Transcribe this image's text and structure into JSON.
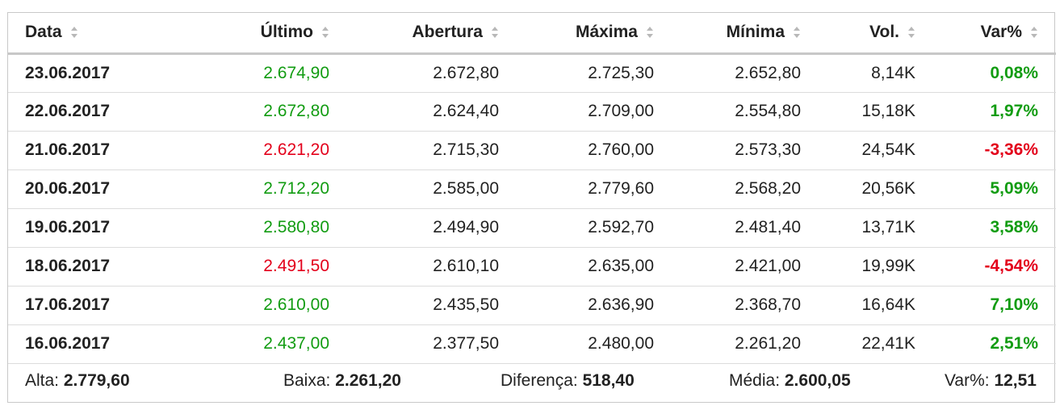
{
  "table": {
    "headers": {
      "date": "Data",
      "last": "Último",
      "open": "Abertura",
      "high": "Máxima",
      "low": "Mínima",
      "vol": "Vol.",
      "var": "Var%"
    },
    "sort_icon": "sort-updown-icon",
    "rows": [
      {
        "date": "23.06.2017",
        "last": "2.674,90",
        "open": "2.672,80",
        "high": "2.725,30",
        "low": "2.652,80",
        "vol": "8,14K",
        "var": "0,08%",
        "trend": "up"
      },
      {
        "date": "22.06.2017",
        "last": "2.672,80",
        "open": "2.624,40",
        "high": "2.709,00",
        "low": "2.554,80",
        "vol": "15,18K",
        "var": "1,97%",
        "trend": "up"
      },
      {
        "date": "21.06.2017",
        "last": "2.621,20",
        "open": "2.715,30",
        "high": "2.760,00",
        "low": "2.573,30",
        "vol": "24,54K",
        "var": "-3,36%",
        "trend": "down"
      },
      {
        "date": "20.06.2017",
        "last": "2.712,20",
        "open": "2.585,00",
        "high": "2.779,60",
        "low": "2.568,20",
        "vol": "20,56K",
        "var": "5,09%",
        "trend": "up"
      },
      {
        "date": "19.06.2017",
        "last": "2.580,80",
        "open": "2.494,90",
        "high": "2.592,70",
        "low": "2.481,40",
        "vol": "13,71K",
        "var": "3,58%",
        "trend": "up"
      },
      {
        "date": "18.06.2017",
        "last": "2.491,50",
        "open": "2.610,10",
        "high": "2.635,00",
        "low": "2.421,00",
        "vol": "19,99K",
        "var": "-4,54%",
        "trend": "down"
      },
      {
        "date": "17.06.2017",
        "last": "2.610,00",
        "open": "2.435,50",
        "high": "2.636,90",
        "low": "2.368,70",
        "vol": "16,64K",
        "var": "7,10%",
        "trend": "up"
      },
      {
        "date": "16.06.2017",
        "last": "2.437,00",
        "open": "2.377,50",
        "high": "2.480,00",
        "low": "2.261,20",
        "vol": "22,41K",
        "var": "2,51%",
        "trend": "up"
      }
    ]
  },
  "summary": {
    "high_label": "Alta:",
    "high_value": "2.779,60",
    "low_label": "Baixa:",
    "low_value": "2.261,20",
    "diff_label": "Diferença:",
    "diff_value": "518,40",
    "avg_label": "Média:",
    "avg_value": "2.600,05",
    "var_label": "Var%:",
    "var_value": "12,51"
  },
  "colors": {
    "positive": "#129c12",
    "negative": "#e3001b",
    "border": "#c8c8c8"
  }
}
